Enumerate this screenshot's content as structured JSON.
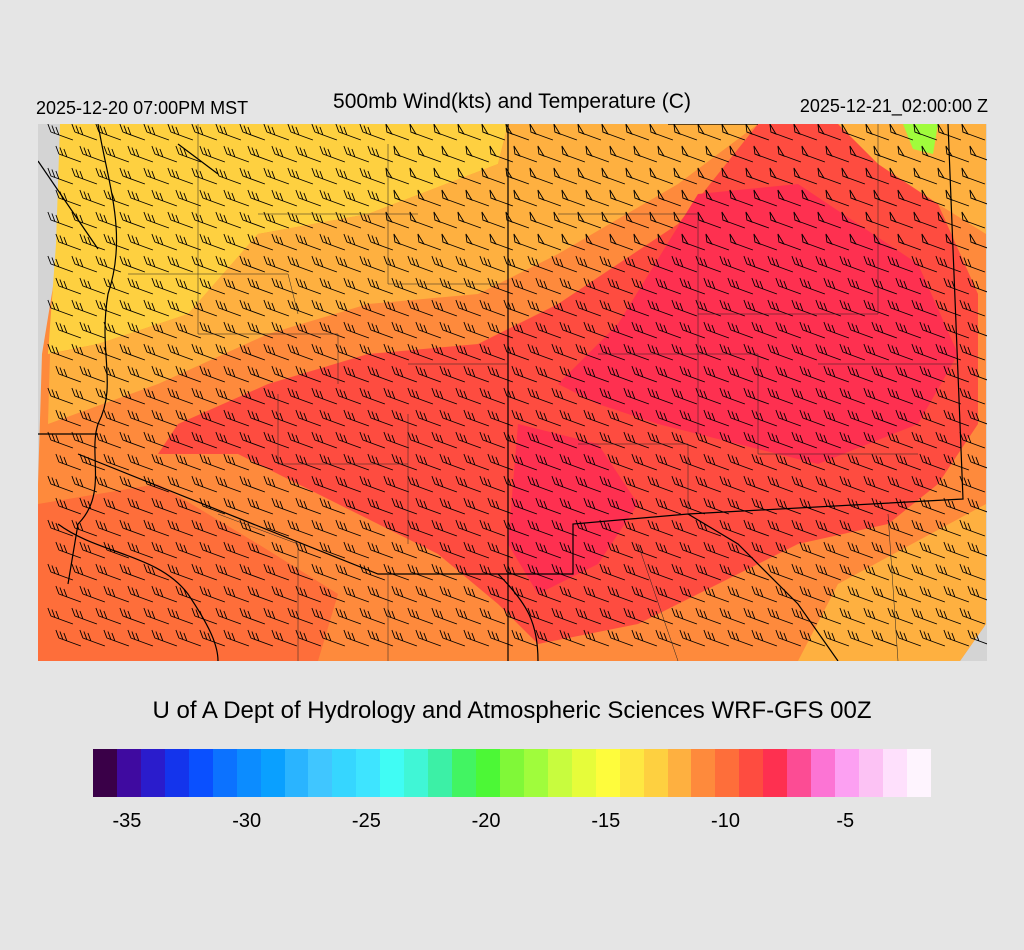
{
  "header": {
    "local_time": "2025-12-20 07:00PM MST",
    "title": "500mb Wind(kts) and Temperature (C)",
    "utc_time": "2025-12-21_02:00:00 Z"
  },
  "footer": {
    "credit": "U of A Dept of Hydrology and Atmospheric Sciences WRF-GFS 00Z"
  },
  "colorbar": {
    "colors": [
      "#3a0048",
      "#3f0aa0",
      "#2a1ccc",
      "#1434ec",
      "#0a50ff",
      "#0c72ff",
      "#0c8cff",
      "#0aa0ff",
      "#2ab4ff",
      "#40c6ff",
      "#36d6ff",
      "#3ee4ff",
      "#40fcf4",
      "#40f6d6",
      "#3cf0a6",
      "#42f462",
      "#4cf836",
      "#80f838",
      "#a0fc3c",
      "#c8fc3e",
      "#e6fc3a",
      "#fefc3c",
      "#fee842",
      "#fed040",
      "#feb040",
      "#fe8a3c",
      "#fe6e3a",
      "#fe4c40",
      "#fe3050",
      "#fc4c94",
      "#fc74d4",
      "#fca0f2",
      "#fcc2f4",
      "#fee0fc",
      "#fef4fe"
    ],
    "tick_labels": [
      "-35",
      "-30",
      "-25",
      "-20",
      "-15",
      "-10",
      "-5"
    ],
    "tick_values": [
      -35,
      -30,
      -25,
      -20,
      -15,
      -10,
      -5
    ],
    "min": -36,
    "max": -1
  },
  "map": {
    "field_colors": {
      "no_data": "#d4d4d4",
      "warm_yellow": "#fed040",
      "orange": "#feb040",
      "orange_red": "#fe8a3c",
      "red_orange": "#fe6e3a",
      "red": "#fe4c40",
      "deep_red": "#fe3050",
      "green_spot": "#a0fc3c"
    },
    "wind_barb_color": "#000000",
    "border_color": "#000000"
  }
}
